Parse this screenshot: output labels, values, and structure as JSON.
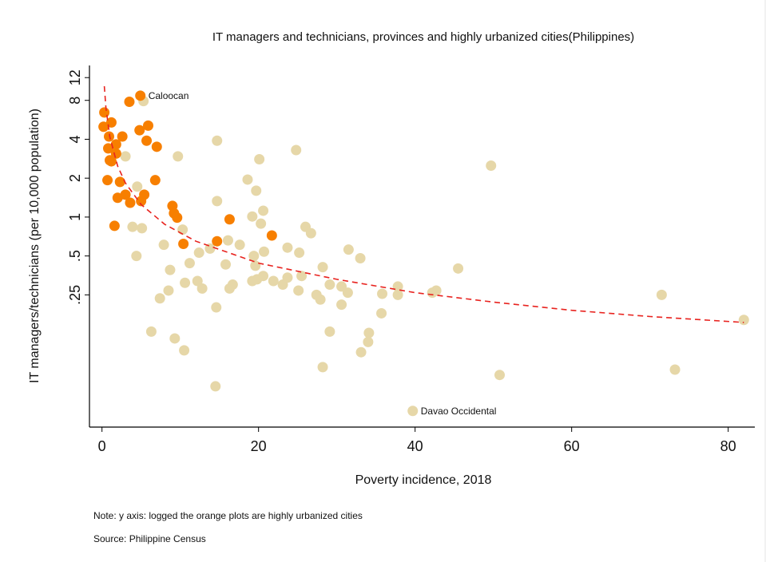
{
  "chart_data": {
    "type": "scatter",
    "title": "IT managers and technicians, provinces and highly urbanized cities(Philippines)",
    "x_label": "Poverty incidence, 2018",
    "y_label": "IT managers/technicians (per 10,000 population)",
    "notes": [
      "Note: y axis: logged the orange plots are highly urbanized cities",
      "Source: Philippine Census"
    ],
    "xlim": [
      -1.6,
      83.4
    ],
    "ylim": [
      0.0237,
      14.9
    ],
    "y_log": true,
    "xticks": [
      0,
      20,
      40,
      60,
      80
    ],
    "yticks": [
      12,
      8,
      4,
      2,
      1,
      {
        "value": 0.5,
        "label": ".5"
      },
      {
        "value": 0.25,
        "label": ".25"
      }
    ],
    "series": [
      {
        "color": "#e6d7a8",
        "x": [
          5.3,
          3.0,
          9.7,
          14.7,
          24.8,
          49.7,
          20.1,
          18.6,
          19.7,
          4.5,
          14.7,
          20.6,
          19.2,
          20.3,
          26.0,
          26.7,
          3.9,
          5.1,
          10.3,
          16.1,
          17.6,
          7.9,
          23.7,
          20.7,
          25.2,
          31.5,
          19.4,
          4.4,
          33.0,
          12.4,
          13.8,
          11.2,
          15.8,
          19.6,
          28.2,
          45.5,
          8.7,
          25.5,
          23.7,
          20.6,
          19.2,
          19.8,
          21.9,
          23.1,
          10.6,
          12.2,
          12.8,
          16.7,
          16.3,
          29.1,
          30.6,
          25.1,
          31.4,
          37.8,
          42.7,
          42.2,
          35.8,
          37.8,
          27.4,
          27.9,
          8.5,
          7.4,
          14.6,
          30.6,
          71.5,
          35.7,
          82.0,
          6.3,
          29.1,
          34.1,
          9.3,
          34.0,
          10.5,
          33.1,
          28.2,
          50.8,
          73.2,
          14.5,
          39.7
        ],
        "values": [
          7.9,
          2.95,
          2.95,
          3.9,
          3.3,
          2.5,
          2.8,
          1.95,
          1.6,
          1.72,
          1.33,
          1.12,
          1.01,
          0.89,
          0.84,
          0.75,
          0.84,
          0.82,
          0.8,
          0.66,
          0.61,
          0.61,
          0.58,
          0.54,
          0.53,
          0.56,
          0.5,
          0.5,
          0.48,
          0.53,
          0.57,
          0.44,
          0.43,
          0.42,
          0.41,
          0.4,
          0.39,
          0.35,
          0.34,
          0.35,
          0.32,
          0.33,
          0.32,
          0.3,
          0.31,
          0.32,
          0.28,
          0.3,
          0.28,
          0.3,
          0.29,
          0.27,
          0.26,
          0.29,
          0.27,
          0.26,
          0.255,
          0.25,
          0.25,
          0.23,
          0.27,
          0.235,
          0.2,
          0.21,
          0.25,
          0.18,
          0.16,
          0.13,
          0.13,
          0.127,
          0.115,
          0.108,
          0.093,
          0.09,
          0.069,
          0.06,
          0.066,
          0.049,
          0.0316
        ]
      },
      {
        "color": "#f77f00",
        "x": [
          4.9,
          3.5,
          0.3,
          1.2,
          0.2,
          5.9,
          4.8,
          0.9,
          2.6,
          5.7,
          1.8,
          0.8,
          7.0,
          1.8,
          1.2,
          1.0,
          6.8,
          0.7,
          2.3,
          3.0,
          5.4,
          2.0,
          3.6,
          5.0,
          9.0,
          9.2,
          9.6,
          16.3,
          1.6,
          21.7,
          14.7,
          10.4
        ],
        "values": [
          8.7,
          7.8,
          6.45,
          5.4,
          5.0,
          5.1,
          4.7,
          4.2,
          4.2,
          3.9,
          3.65,
          3.4,
          3.5,
          3.1,
          2.7,
          2.75,
          1.93,
          1.93,
          1.87,
          1.49,
          1.49,
          1.41,
          1.29,
          1.33,
          1.22,
          1.07,
          0.99,
          0.96,
          0.855,
          0.72,
          0.65,
          0.62
        ]
      }
    ],
    "fit_line": {
      "color": "#e8231f",
      "dashed": true,
      "x": [
        0.3,
        0.5,
        1,
        2,
        3,
        5,
        8,
        12,
        20,
        30,
        40,
        50,
        60,
        70,
        82
      ],
      "values": [
        10.3,
        7.02,
        4.17,
        2.48,
        1.83,
        1.25,
        0.88,
        0.65,
        0.44,
        0.33,
        0.26,
        0.22,
        0.19,
        0.17,
        0.153
      ]
    },
    "annotations": [
      {
        "text": "Caloocan",
        "x": 4.9,
        "y": 8.7
      },
      {
        "text": "Davao Occidental",
        "x": 39.7,
        "y": 0.0316
      }
    ]
  }
}
